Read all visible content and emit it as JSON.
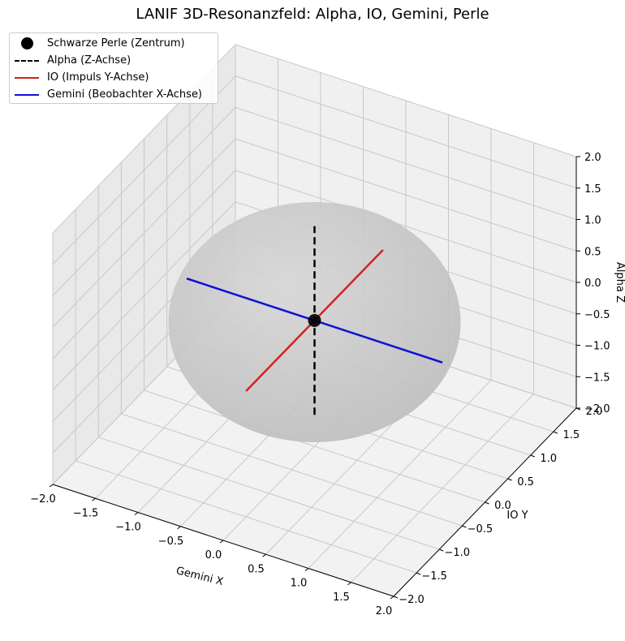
{
  "chart_data": {
    "type": "scatter",
    "title": "LANIF 3D-Resonanzfeld: Alpha, IO, Gemini, Perle",
    "xlabel": "Gemini X",
    "ylabel": "IO Y",
    "zlabel": "Alpha Z",
    "xlim": [
      -2.0,
      2.0
    ],
    "ylim": [
      -2.0,
      2.0
    ],
    "zlim": [
      -2.0,
      2.0
    ],
    "ticks": [
      -2.0,
      -1.5,
      -1.0,
      -0.5,
      0.0,
      0.5,
      1.0,
      1.5,
      2.0
    ],
    "tick_labels": [
      "−2.0",
      "−1.5",
      "−1.0",
      "−0.5",
      "0.0",
      "0.5",
      "1.0",
      "1.5",
      "2.0"
    ],
    "grid": true,
    "legend_position": "top-left",
    "sphere": {
      "center": [
        0,
        0,
        0
      ],
      "radius": 1.0,
      "color": "#bdbdbd"
    },
    "series": [
      {
        "name": "Schwarze Perle (Zentrum)",
        "kind": "point",
        "color": "#000000",
        "points": [
          [
            0,
            0,
            0
          ]
        ]
      },
      {
        "name": "Alpha (Z-Achse)",
        "kind": "line",
        "style": "dashed",
        "color": "#000000",
        "points": [
          [
            0,
            0,
            -1.5
          ],
          [
            0,
            0,
            1.5
          ]
        ]
      },
      {
        "name": "IO (Impuls Y-Achse)",
        "kind": "line",
        "style": "solid",
        "color": "#d62020",
        "points": [
          [
            0,
            -1.5,
            0
          ],
          [
            0,
            1.5,
            0
          ]
        ]
      },
      {
        "name": "Gemini (Beobachter X-Achse)",
        "kind": "line",
        "style": "solid",
        "color": "#1010d8",
        "points": [
          [
            -1.5,
            0,
            0
          ],
          [
            1.5,
            0,
            0
          ]
        ]
      }
    ]
  }
}
